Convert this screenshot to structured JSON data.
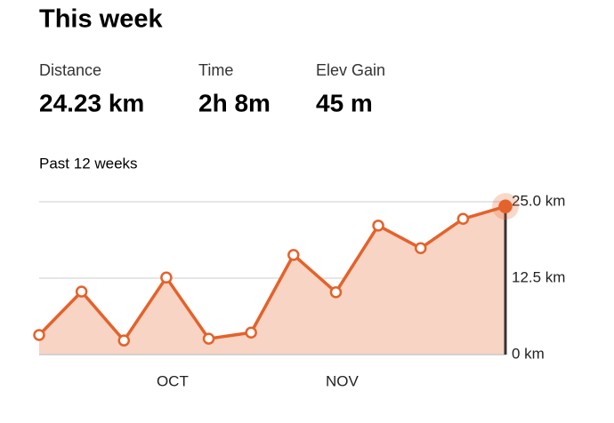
{
  "header": {
    "title": "This week"
  },
  "stats": [
    {
      "label": "Distance",
      "value": "24.23 km"
    },
    {
      "label": "Time",
      "value": "2h 8m"
    },
    {
      "label": "Elev Gain",
      "value": "45 m"
    }
  ],
  "chart_data": {
    "type": "line",
    "title": "Past 12 weeks",
    "categories": [
      null,
      null,
      null,
      "OCT",
      null,
      null,
      null,
      "NOV",
      null,
      null,
      null,
      null
    ],
    "values": [
      3.2,
      10.3,
      2.3,
      12.6,
      2.6,
      3.6,
      16.3,
      10.2,
      21.1,
      17.4,
      22.2,
      24.23
    ],
    "color": "#e4622b",
    "fill": "#f8d4c4",
    "ylim": [
      0,
      25
    ],
    "yticks": [
      {
        "value": 0,
        "label": "0 km"
      },
      {
        "value": 12.5,
        "label": "12.5 km"
      },
      {
        "value": 25,
        "label": "25.0 km"
      }
    ],
    "grid": true
  }
}
